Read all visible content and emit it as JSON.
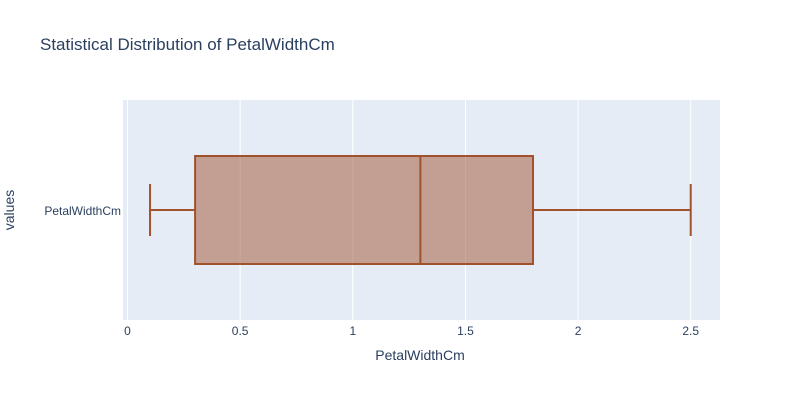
{
  "chart_data": {
    "type": "box",
    "orientation": "horizontal",
    "title": "Statistical Distribution of PetalWidthCm",
    "xlabel": "PetalWidthCm",
    "ylabel": "values",
    "category": "PetalWidthCm",
    "xlim": [
      -0.02,
      2.63
    ],
    "x_ticks": [
      0,
      0.5,
      1,
      1.5,
      2,
      2.5
    ],
    "x_tick_labels": [
      "0",
      "0.5",
      "1",
      "1.5",
      "2",
      "2.5"
    ],
    "box": {
      "min": 0.1,
      "q1": 0.3,
      "median": 1.3,
      "q3": 1.8,
      "max": 2.5
    },
    "grid": true,
    "colors": {
      "plot_bg": "#e5ecf6",
      "grid": "#ffffff",
      "box_line": "#a0522d",
      "box_fill": "rgba(160,82,45,0.5)",
      "text": "#2a3f5f"
    }
  }
}
